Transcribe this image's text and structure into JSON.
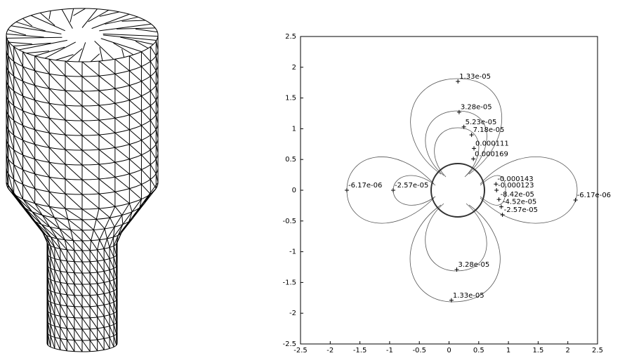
{
  "chart_data": {
    "type": "contour",
    "xlim": [
      -2.5,
      2.5
    ],
    "ylim": [
      -2.5,
      2.5
    ],
    "xticks": [
      -2.5,
      -2,
      -1.5,
      -1,
      -0.5,
      0,
      0.5,
      1,
      1.5,
      2,
      2.5
    ],
    "yticks": [
      -2.5,
      -2,
      -1.5,
      -1,
      -0.5,
      0,
      0.5,
      1,
      1.5,
      2,
      2.5
    ],
    "annotations": [
      {
        "text": "1.33e-05",
        "x": 0.15,
        "y": 1.77
      },
      {
        "text": "3.28e-05",
        "x": 0.17,
        "y": 1.27
      },
      {
        "text": "5.23e-05",
        "x": 0.25,
        "y": 1.03
      },
      {
        "text": "7.18e-05",
        "x": 0.38,
        "y": 0.9
      },
      {
        "text": "0.000111",
        "x": 0.42,
        "y": 0.68
      },
      {
        "text": "0.000169",
        "x": 0.41,
        "y": 0.51
      },
      {
        "text": "-6.17e-06",
        "x": -1.72,
        "y": 0
      },
      {
        "text": "-2.57e-05",
        "x": -0.94,
        "y": 0
      },
      {
        "text": "-0.000143",
        "x": 0.79,
        "y": 0.1
      },
      {
        "text": "-0.000123",
        "x": 0.8,
        "y": 0
      },
      {
        "text": "-8.42e-05",
        "x": 0.84,
        "y": -0.15
      },
      {
        "text": "-4.52e-05",
        "x": 0.88,
        "y": -0.27
      },
      {
        "text": "-2.57e-05",
        "x": 0.9,
        "y": -0.4
      },
      {
        "text": "-6.17e-06",
        "x": 2.13,
        "y": -0.16
      },
      {
        "text": "3.28e-05",
        "x": 0.13,
        "y": -1.29
      },
      {
        "text": "1.33e-05",
        "x": 0.04,
        "y": -1.79
      }
    ]
  }
}
